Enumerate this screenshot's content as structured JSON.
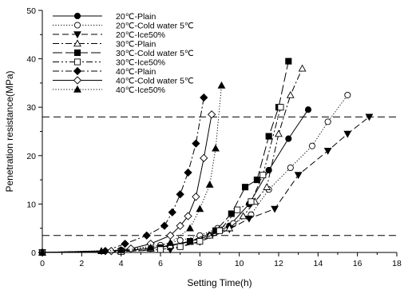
{
  "chart_data": {
    "type": "line",
    "xlabel": "Setting Time(h)",
    "ylabel": "Penetration resistance(MPa)",
    "xlim": [
      0,
      18
    ],
    "ylim": [
      0,
      50
    ],
    "xticks": [
      "0",
      "2",
      "4",
      "6",
      "8",
      "10",
      "12",
      "14",
      "16",
      "18"
    ],
    "yticks": [
      "0",
      "10",
      "20",
      "30",
      "40",
      "50"
    ],
    "grid": false,
    "legend_position": "top-left",
    "reference_lines": [
      3.5,
      28
    ],
    "series": [
      {
        "name": "20℃-Plain",
        "marker": "circle-filled",
        "dash": "solid",
        "x": [
          0,
          4.0,
          5.5,
          6.5,
          7.5,
          8.5,
          9.5,
          10.5,
          11.5,
          12.5,
          13.5
        ],
        "y": [
          0,
          0.4,
          0.8,
          1.5,
          2.3,
          3.5,
          5.5,
          10.0,
          17.0,
          23.5,
          29.5
        ]
      },
      {
        "name": "20℃-Cold water 5℃",
        "marker": "circle-open",
        "dash": "dotted",
        "x": [
          0,
          4.0,
          6.0,
          7.0,
          8.0,
          8.9,
          9.7,
          10.6,
          11.5,
          12.6,
          13.7,
          14.5,
          15.5
        ],
        "y": [
          0,
          0.5,
          1.5,
          2.5,
          3.5,
          5.0,
          6.0,
          7.8,
          13.0,
          17.5,
          22.0,
          27.0,
          32.5
        ]
      },
      {
        "name": "20℃-Ice50%",
        "marker": "triangle-down-filled",
        "dash": "dash",
        "x": [
          0,
          4.0,
          6.5,
          8.0,
          9.5,
          10.5,
          11.8,
          13.0,
          14.5,
          15.5,
          16.6
        ],
        "y": [
          0,
          0.2,
          0.6,
          2.2,
          4.8,
          7.0,
          9.0,
          16.0,
          21.0,
          24.5,
          28.0
        ]
      },
      {
        "name": "30℃-Plain",
        "marker": "triangle-up-open",
        "dash": "dashdot",
        "x": [
          0,
          4.0,
          5.5,
          6.5,
          7.5,
          8.5,
          9.5,
          10.2,
          10.8,
          11.4,
          12.0,
          12.6,
          13.2
        ],
        "y": [
          0,
          0.3,
          0.8,
          1.4,
          2.2,
          3.5,
          5.0,
          7.5,
          10.5,
          13.5,
          24.5,
          32.5,
          38.0
        ]
      },
      {
        "name": "30℃-Cold water 5℃",
        "marker": "square-filled",
        "dash": "longdash",
        "x": [
          0,
          4.0,
          6.0,
          7.5,
          8.8,
          9.6,
          10.3,
          10.9,
          11.5,
          12.0,
          12.5
        ],
        "y": [
          0,
          0.3,
          1.0,
          2.3,
          4.5,
          8.0,
          13.5,
          15.0,
          24.0,
          30.0,
          39.5
        ]
      },
      {
        "name": "30℃-Ice50%",
        "marker": "square-open",
        "dash": "dashdotdot",
        "x": [
          0,
          4.0,
          6.0,
          7.0,
          8.0,
          9.0,
          9.9,
          10.6,
          11.2,
          12.1
        ],
        "y": [
          0,
          0.2,
          0.6,
          1.2,
          2.3,
          4.5,
          8.8,
          10.5,
          16.0,
          30.0
        ]
      },
      {
        "name": "40℃-Plain",
        "marker": "diamond-filled",
        "dash": "dashdot",
        "x": [
          0,
          3.2,
          4.2,
          5.3,
          6.2,
          6.6,
          7.0,
          7.4,
          7.8,
          8.2
        ],
        "y": [
          0,
          0.3,
          1.8,
          3.5,
          5.5,
          8.3,
          12.0,
          16.5,
          22.5,
          32.0
        ]
      },
      {
        "name": "40℃-Cold water 5℃",
        "marker": "diamond-open",
        "dash": "solid",
        "x": [
          0,
          3.5,
          4.5,
          5.5,
          6.5,
          7.0,
          7.4,
          7.8,
          8.2,
          8.6
        ],
        "y": [
          0,
          0.3,
          0.8,
          1.8,
          3.5,
          5.5,
          7.5,
          11.5,
          19.5,
          28.5
        ]
      },
      {
        "name": "40℃-Ice50%",
        "marker": "triangle-up-filled",
        "dash": "dotted",
        "x": [
          0,
          3.0,
          4.0,
          5.5,
          6.5,
          7.5,
          8.0,
          8.5,
          8.8,
          9.1
        ],
        "y": [
          0,
          0.3,
          0.5,
          1.0,
          2.0,
          5.0,
          9.0,
          14.0,
          21.5,
          34.5
        ]
      }
    ]
  }
}
